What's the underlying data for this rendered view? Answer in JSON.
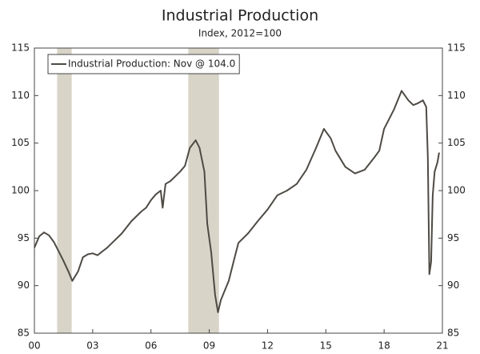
{
  "chart_data": {
    "type": "line",
    "title": "Industrial Production",
    "subtitle": "Index, 2012=100",
    "x": [
      2000.0,
      2000.25,
      2000.5,
      2000.75,
      2001.0,
      2001.25,
      2001.5,
      2001.75,
      2001.95,
      2002.25,
      2002.5,
      2002.75,
      2003.0,
      2003.25,
      2003.5,
      2003.75,
      2004.0,
      2004.5,
      2005.0,
      2005.5,
      2005.75,
      2006.0,
      2006.25,
      2006.5,
      2006.6,
      2006.75,
      2007.0,
      2007.5,
      2007.75,
      2008.0,
      2008.3,
      2008.5,
      2008.75,
      2008.9,
      2009.1,
      2009.3,
      2009.45,
      2009.6,
      2010.0,
      2010.25,
      2010.5,
      2011.0,
      2011.5,
      2012.0,
      2012.5,
      2013.0,
      2013.5,
      2014.0,
      2014.5,
      2014.9,
      2015.25,
      2015.5,
      2016.0,
      2016.5,
      2017.0,
      2017.5,
      2017.75,
      2018.0,
      2018.5,
      2018.9,
      2019.25,
      2019.5,
      2019.75,
      2020.0,
      2020.17,
      2020.25,
      2020.33,
      2020.42,
      2020.5,
      2020.6,
      2020.75,
      2020.83
    ],
    "series": [
      {
        "name": "Industrial Production: Nov @ 104.0",
        "color": "#4e4a44",
        "values": [
          94.0,
          95.2,
          95.6,
          95.3,
          94.6,
          93.6,
          92.6,
          91.5,
          90.5,
          91.5,
          93.0,
          93.3,
          93.4,
          93.2,
          93.6,
          94.0,
          94.5,
          95.5,
          96.8,
          97.8,
          98.2,
          99.0,
          99.6,
          100.0,
          98.2,
          100.7,
          101.0,
          102.0,
          102.6,
          104.5,
          105.3,
          104.5,
          102.0,
          96.5,
          93.5,
          89.0,
          87.2,
          88.5,
          90.5,
          92.5,
          94.5,
          95.5,
          96.8,
          98.0,
          99.5,
          100.0,
          100.7,
          102.2,
          104.5,
          106.5,
          105.5,
          104.2,
          102.5,
          101.8,
          102.2,
          103.5,
          104.2,
          106.5,
          108.5,
          110.5,
          109.5,
          109.0,
          109.2,
          109.5,
          108.8,
          103.5,
          91.2,
          92.5,
          99.5,
          102.0,
          103.0,
          104.0
        ]
      }
    ],
    "recessions": [
      [
        2001.17,
        2001.92
      ],
      [
        2007.92,
        2009.5
      ]
    ],
    "recession_color": "#d8d4c8",
    "xlim": [
      2000,
      2021
    ],
    "xticks": [
      {
        "value": 2000,
        "label": "00"
      },
      {
        "value": 2003,
        "label": "03"
      },
      {
        "value": 2006,
        "label": "06"
      },
      {
        "value": 2009,
        "label": "09"
      },
      {
        "value": 2012,
        "label": "12"
      },
      {
        "value": 2015,
        "label": "15"
      },
      {
        "value": 2018,
        "label": "18"
      },
      {
        "value": 2021,
        "label": "21"
      }
    ],
    "ylim": [
      85,
      115
    ],
    "yticks": [
      85,
      90,
      95,
      100,
      105,
      110,
      115
    ]
  }
}
